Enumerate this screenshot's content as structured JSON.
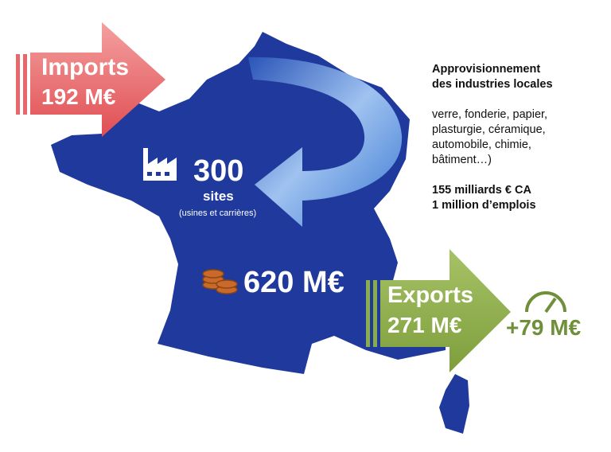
{
  "imports": {
    "label": "Imports",
    "value": "192 M€"
  },
  "sites": {
    "value": "300",
    "unit": "sites",
    "note": "(usines et carrières)"
  },
  "total": {
    "value": "620 M€"
  },
  "exports": {
    "label": "Exports",
    "value": "271 M€"
  },
  "balance": {
    "value": "+79 M€"
  },
  "side": {
    "title_lines": [
      "Approvisionnement",
      "des industries locales"
    ],
    "list_lines": [
      "verre, fonderie, papier,",
      "plasturgie, céramique,",
      "automobile, chimie,",
      "bâtiment…)"
    ],
    "stats_lines": [
      "155 milliards € CA",
      "1 million d’emplois"
    ]
  },
  "colors": {
    "map": "#1f3a9c",
    "imports": "#e8676a",
    "exports": "#8cab4a",
    "arrow": "#5b8fd6",
    "coins": "#c96a2a",
    "balance": "#6f8f3a"
  },
  "icons": [
    "factory-icon",
    "coins-icon",
    "gauge-icon"
  ]
}
